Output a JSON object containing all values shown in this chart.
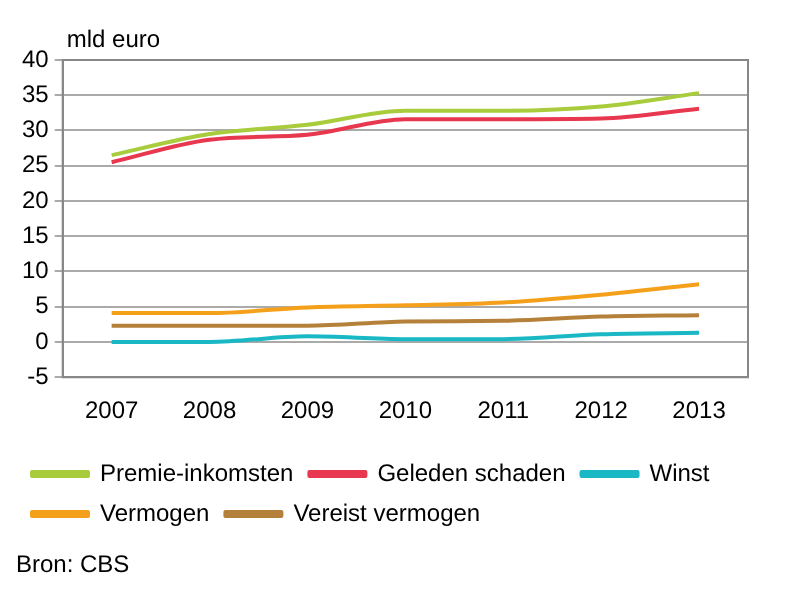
{
  "chart_data": {
    "type": "line",
    "ylabel": "mld euro",
    "categories": [
      "2007",
      "2008",
      "2009",
      "2010",
      "2011",
      "2012",
      "2013"
    ],
    "series": [
      {
        "name": "Premie-inkomsten",
        "color": "#a8cc3c",
        "values": [
          26.5,
          29.5,
          30.8,
          32.8,
          32.8,
          33.4,
          35.3
        ]
      },
      {
        "name": "Geleden schaden",
        "color": "#e8384f",
        "values": [
          25.5,
          28.7,
          29.4,
          31.6,
          31.6,
          31.7,
          33.1
        ]
      },
      {
        "name": "Winst",
        "color": "#1ab8c4",
        "values": [
          0,
          0,
          0.8,
          0.4,
          0.4,
          1.1,
          1.3
        ]
      },
      {
        "name": "Vermogen",
        "color": "#f5a01a",
        "values": [
          4.1,
          4.1,
          4.9,
          5.2,
          5.6,
          6.7,
          8.2
        ]
      },
      {
        "name": "Vereist vermogen",
        "color": "#b5803a",
        "values": [
          2.3,
          2.3,
          2.3,
          2.9,
          3.0,
          3.6,
          3.8
        ]
      }
    ],
    "ylim": [
      -5,
      40
    ],
    "yticks": [
      -5,
      0,
      5,
      10,
      15,
      20,
      25,
      30,
      35,
      40
    ],
    "grid": "y",
    "legend": "bottom",
    "marker": "none",
    "line_style": "solid",
    "annotations": [
      "Bron: CBS"
    ]
  }
}
